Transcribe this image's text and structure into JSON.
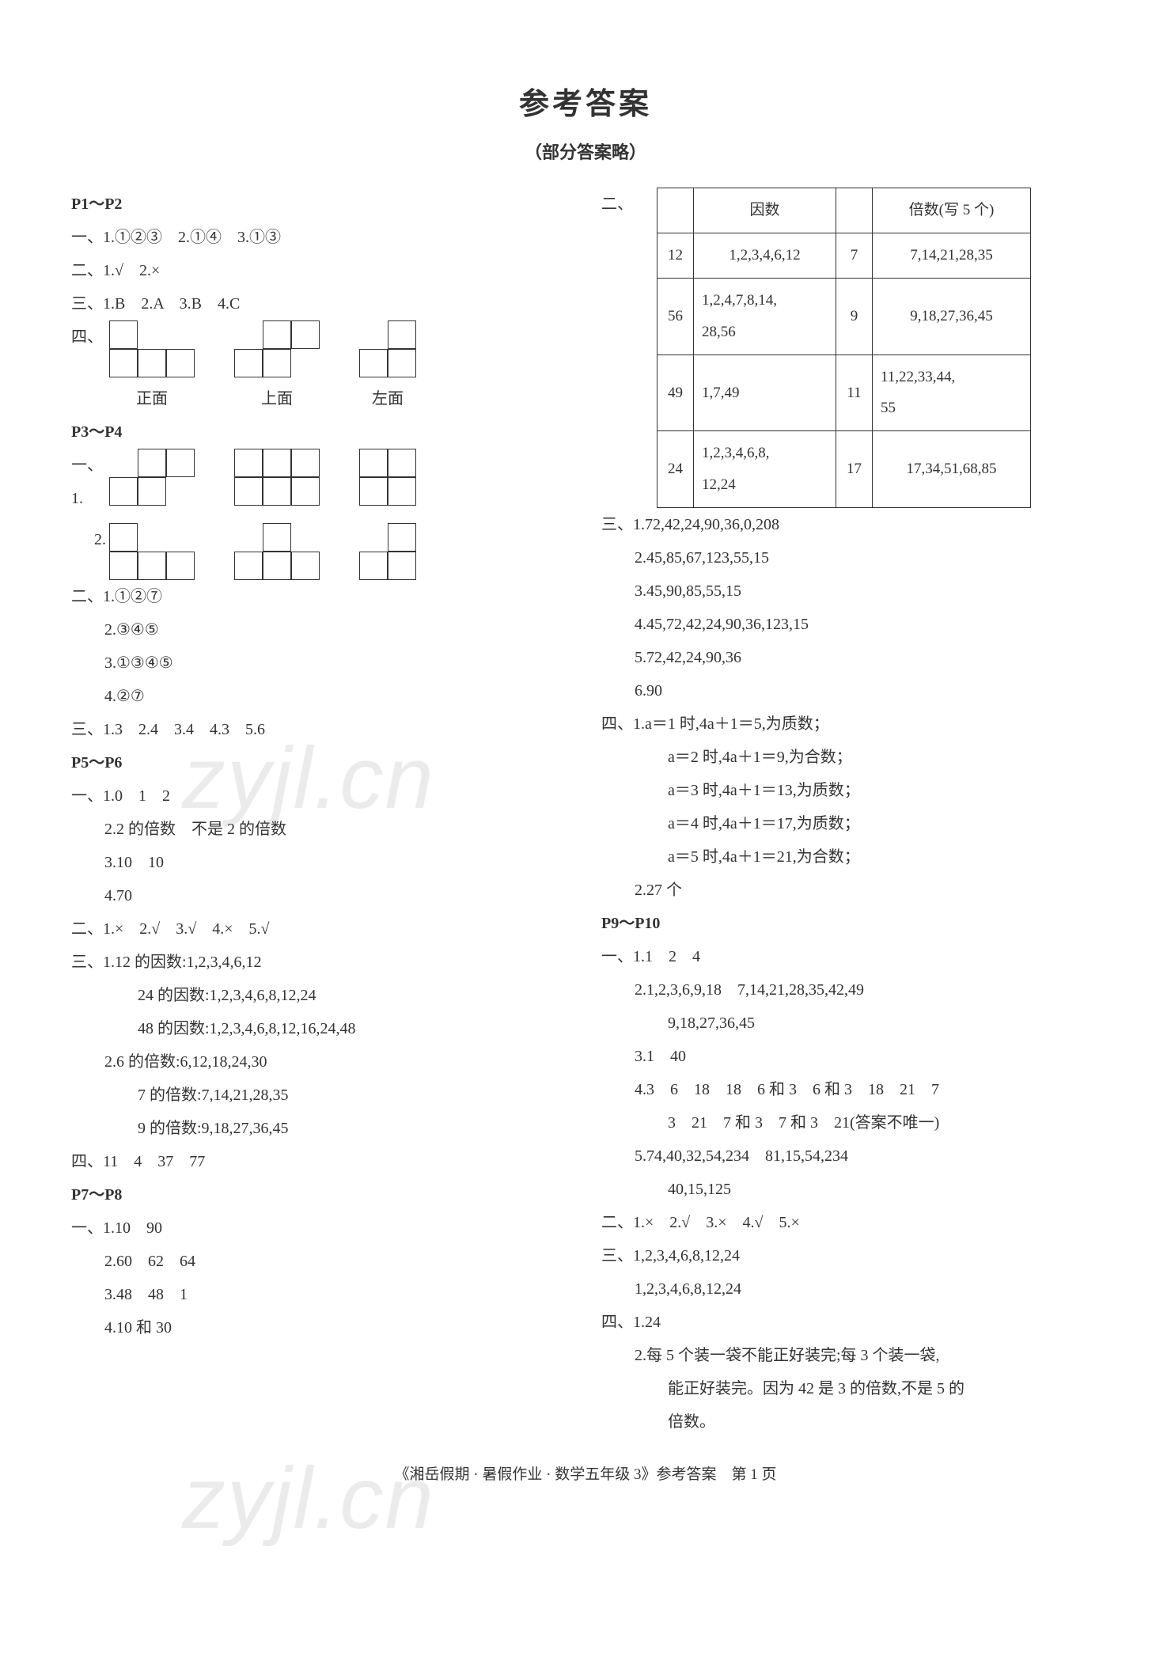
{
  "title": "参考答案",
  "subtitle": "（部分答案略）",
  "watermark": "zyjl.cn",
  "footer": "《湘岳假期 · 暑假作业 · 数学五年级 3》参考答案　第 1 页",
  "left": {
    "p1_2": {
      "head": "P1～P2",
      "l1": "一、1.①②③　2.①④　3.①③",
      "l2": "二、1.√　2.×",
      "l3": "三、1.B　2.A　3.B　4.C",
      "l4": "四、",
      "labels": {
        "front": "正面",
        "top": "上面",
        "left": "左面"
      }
    },
    "p3_4": {
      "head": "P3～P4",
      "l1a": "一、1.",
      "l1b": "2.",
      "l2": "二、1.①②⑦",
      "l2b": "2.③④⑤",
      "l2c": "3.①③④⑤",
      "l2d": "4.②⑦",
      "l3": "三、1.3　2.4　3.4　4.3　5.6"
    },
    "p5_6": {
      "head": "P5～P6",
      "l1": "一、1.0　1　2",
      "l1b": "2.2 的倍数　不是 2 的倍数",
      "l1c": "3.10　10",
      "l1d": "4.70",
      "l2": "二、1.×　2.√　3.√　4.×　5.√",
      "l3": "三、1.12 的因数:1,2,3,4,6,12",
      "l3b": "24 的因数:1,2,3,4,6,8,12,24",
      "l3c": "48 的因数:1,2,3,4,6,8,12,16,24,48",
      "l3d": "2.6 的倍数:6,12,18,24,30",
      "l3e": "7 的倍数:7,14,21,28,35",
      "l3f": "9 的倍数:9,18,27,36,45",
      "l4": "四、11　4　37　77"
    },
    "p7_8": {
      "head": "P7～P8",
      "l1": "一、1.10　90",
      "l1b": "2.60　62　64",
      "l1c": "3.48　48　1",
      "l1d": "4.10 和 30"
    }
  },
  "right": {
    "table": {
      "label": "二、",
      "head_factor": "因数",
      "head_multiple": "倍数(写 5 个)",
      "rows": [
        {
          "a": "12",
          "b": "1,2,3,4,6,12",
          "c": "7",
          "d": "7,14,21,28,35"
        },
        {
          "a": "56",
          "b": "1,2,4,7,8,14,\n28,56",
          "c": "9",
          "d": "9,18,27,36,45"
        },
        {
          "a": "49",
          "b": "1,7,49",
          "c": "11",
          "d": "11,22,33,44,\n55"
        },
        {
          "a": "24",
          "b": "1,2,3,4,6,8,\n12,24",
          "c": "17",
          "d": "17,34,51,68,85"
        }
      ]
    },
    "sec3": {
      "l1": "三、1.72,42,24,90,36,0,208",
      "l2": "2.45,85,67,123,55,15",
      "l3": "3.45,90,85,55,15",
      "l4": "4.45,72,42,24,90,36,123,15",
      "l5": "5.72,42,24,90,36",
      "l6": "6.90"
    },
    "sec4": {
      "l1": "四、1.a＝1 时,4a＋1＝5,为质数；",
      "l2": "a＝2 时,4a＋1＝9,为合数；",
      "l3": "a＝3 时,4a＋1＝13,为质数；",
      "l4": "a＝4 时,4a＋1＝17,为质数；",
      "l5": "a＝5 时,4a＋1＝21,为合数；",
      "l6": "2.27 个"
    },
    "p9_10": {
      "head": "P9～P10",
      "l1": "一、1.1　2　4",
      "l1b": "2.1,2,3,6,9,18　7,14,21,28,35,42,49",
      "l1c": "9,18,27,36,45",
      "l1d": "3.1　40",
      "l1e": "4.3　6　18　18　6 和 3　6 和 3　18　21　7",
      "l1f": "3　21　7 和 3　7 和 3　21(答案不唯一)",
      "l1g": "5.74,40,32,54,234　81,15,54,234",
      "l1h": "40,15,125",
      "l2": "二、1.×　2.√　3.×　4.√　5.×",
      "l3": "三、1,2,3,4,6,8,12,24",
      "l3b": "1,2,3,4,6,8,12,24",
      "l4": "四、1.24",
      "l4b": "2.每 5 个装一袋不能正好装完;每 3 个装一袋,",
      "l4c": "能正好装完。因为 42 是 3 的倍数,不是 5 的",
      "l4d": "倍数。"
    }
  },
  "colors": {
    "text": "#333333",
    "border": "#333333",
    "bg": "#ffffff",
    "watermark": "rgba(120,120,120,0.15)"
  }
}
